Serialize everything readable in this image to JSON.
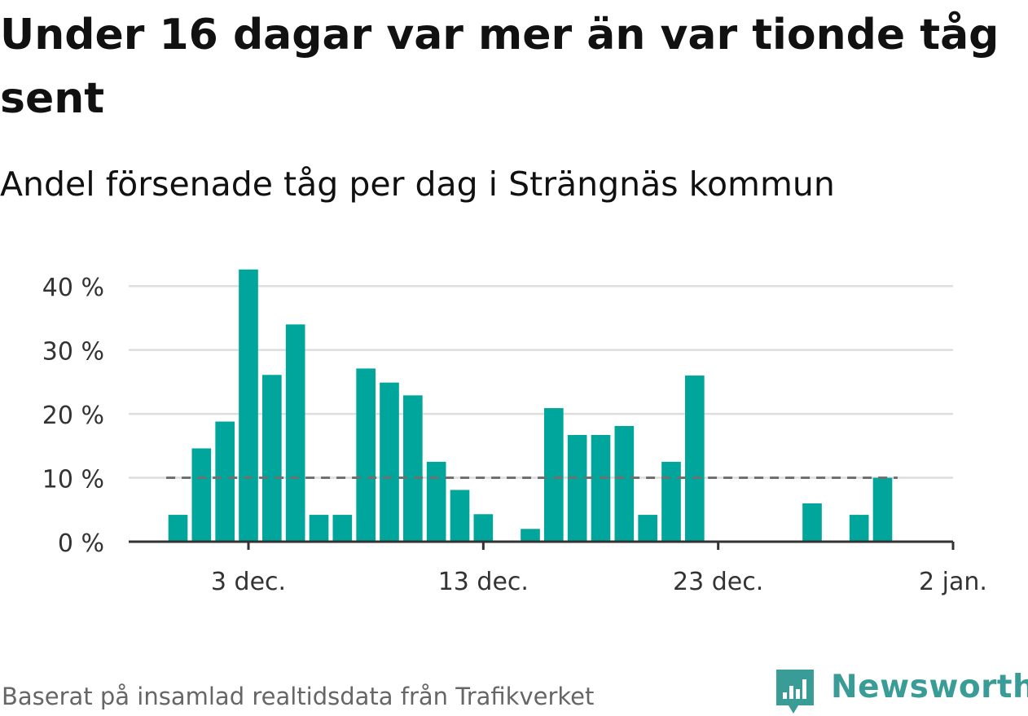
{
  "title": "Under 16 dagar var mer än var tionde tåg sent",
  "subtitle": "Andel försenade tåg per dag i Strängnäs kommun",
  "source": "Baserat på insamlad realtidsdata från Trafikverket",
  "brand": {
    "name": "Newsworthy",
    "icon": "newsworthy-logo-icon",
    "color": "#3a9c97"
  },
  "chart_data": {
    "type": "bar",
    "x_start": "2023-11-30",
    "x_end": "2024-01-02",
    "dates": [
      "2023-11-30",
      "2023-12-01",
      "2023-12-02",
      "2023-12-03",
      "2023-12-04",
      "2023-12-05",
      "2023-12-06",
      "2023-12-07",
      "2023-12-08",
      "2023-12-09",
      "2023-12-10",
      "2023-12-11",
      "2023-12-12",
      "2023-12-13",
      "2023-12-14",
      "2023-12-15",
      "2023-12-16",
      "2023-12-17",
      "2023-12-18",
      "2023-12-19",
      "2023-12-20",
      "2023-12-21",
      "2023-12-22",
      "2023-12-23",
      "2023-12-24",
      "2023-12-25",
      "2023-12-26",
      "2023-12-27",
      "2023-12-28",
      "2023-12-29",
      "2023-12-30",
      "2023-12-31"
    ],
    "values": [
      4.2,
      14.6,
      18.8,
      42.6,
      26.1,
      34.0,
      4.2,
      4.2,
      27.1,
      24.9,
      22.9,
      12.5,
      8.1,
      4.3,
      0,
      2.0,
      20.9,
      16.7,
      16.7,
      18.1,
      4.2,
      12.5,
      26.0,
      0,
      0,
      0,
      0,
      6.0,
      0,
      4.2,
      10.0,
      null
    ],
    "reference_line": 10,
    "reference_line_start": "2023-11-30",
    "reference_line_end": "2023-12-31",
    "ylim": [
      0,
      45
    ],
    "yticks": [
      0,
      10,
      20,
      30,
      40
    ],
    "ytick_labels": [
      "0 %",
      "10 %",
      "20 %",
      "30 %",
      "40 %"
    ],
    "xticks": [
      {
        "date": "2023-12-03",
        "label": "3 dec."
      },
      {
        "date": "2023-12-13",
        "label": "13 dec."
      },
      {
        "date": "2023-12-23",
        "label": "23 dec."
      },
      {
        "date": "2024-01-02",
        "label": "2 jan."
      }
    ],
    "xlabel": "",
    "ylabel": "",
    "grid": true,
    "colors": {
      "bar": "#00a59b",
      "grid": "#dddddd",
      "axis": "#333333",
      "reference": "#707070"
    }
  }
}
